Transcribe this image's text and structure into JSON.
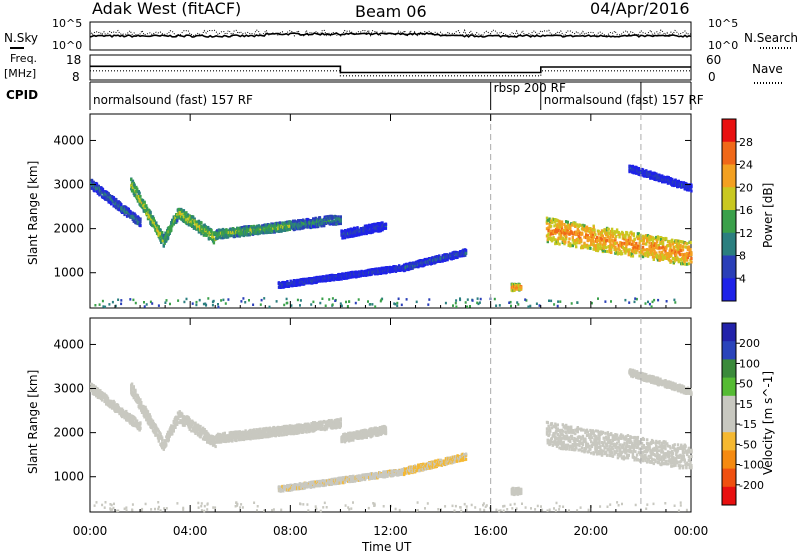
{
  "header": {
    "station": "Adak West (fitACF)",
    "beam": "Beam 06",
    "date": "04/Apr/2016"
  },
  "top_panels": {
    "nsky_label": "N.Sky",
    "nsearch_label": "N.Search",
    "nsky_ticks": [
      "10^5",
      "10^0"
    ],
    "nsearch_ticks": [
      "10^5",
      "10^0"
    ],
    "freq_label_1": "Freq.",
    "freq_label_2": "[MHz]",
    "freq_ticks": [
      "18",
      "8"
    ],
    "nave_label": "Nave",
    "nave_ticks": [
      "60",
      "0"
    ],
    "cpid_label": "CPID",
    "cpid_segments": [
      {
        "label": "normalsound (fast) 157 RF",
        "start_h": 0,
        "end_h": 16
      },
      {
        "label": "rbsp 200 RF",
        "start_h": 16,
        "end_h": 18
      },
      {
        "label": "normalsound (fast) 157 RF",
        "start_h": 18,
        "end_h": 22
      }
    ],
    "freq_series": [
      {
        "t": 0,
        "f": 13.5
      },
      {
        "t": 10,
        "f": 13.5
      },
      {
        "t": 10,
        "f": 11
      },
      {
        "t": 18,
        "f": 11
      },
      {
        "t": 18,
        "f": 13.2
      },
      {
        "t": 24,
        "f": 13.2
      }
    ],
    "nave_series": [
      {
        "t": 0,
        "n": 22
      },
      {
        "t": 10,
        "n": 22
      },
      {
        "t": 10,
        "n": 10
      },
      {
        "t": 18,
        "n": 10
      },
      {
        "t": 18,
        "n": 22
      },
      {
        "t": 24,
        "n": 22
      }
    ]
  },
  "chart_data": [
    {
      "type": "heatmap",
      "ylabel": "Slant Range [km]",
      "yticks": [
        "4000",
        "3000",
        "2000",
        "1000"
      ],
      "ylim": [
        200,
        4600
      ],
      "xlim": [
        0,
        24
      ],
      "colorbar": {
        "label": "Power [dB]",
        "ticks": [
          "28",
          "24",
          "20",
          "16",
          "12",
          "8",
          "4"
        ],
        "range": [
          0,
          32
        ],
        "colors": [
          "#1e22e8",
          "#2a3fb8",
          "#2b7f7f",
          "#3aa04a",
          "#c9c820",
          "#f3a020",
          "#f06818",
          "#e81010"
        ]
      },
      "events": [
        {
          "t0": 0.0,
          "t1": 2.0,
          "r0": 3050,
          "r1": 2150,
          "w": 200,
          "p": 10
        },
        {
          "t0": 1.6,
          "t1": 2.9,
          "r0": 3050,
          "r1": 1750,
          "w": 260,
          "p": 18
        },
        {
          "t0": 2.9,
          "t1": 3.5,
          "r0": 1750,
          "r1": 2400,
          "w": 240,
          "p": 16
        },
        {
          "t0": 3.5,
          "t1": 5.0,
          "r0": 2400,
          "r1": 1800,
          "w": 260,
          "p": 18
        },
        {
          "t0": 5.0,
          "t1": 8.0,
          "r0": 1900,
          "r1": 2100,
          "w": 200,
          "p": 16
        },
        {
          "t0": 8.0,
          "t1": 10.0,
          "r0": 2100,
          "r1": 2250,
          "w": 200,
          "p": 12
        },
        {
          "t0": 10.0,
          "t1": 11.8,
          "r0": 1900,
          "r1": 2100,
          "w": 180,
          "p": 6
        },
        {
          "t0": 7.5,
          "t1": 12.5,
          "r0": 750,
          "r1": 1150,
          "w": 120,
          "p": 6
        },
        {
          "t0": 12.5,
          "t1": 15.0,
          "r0": 1150,
          "r1": 1500,
          "w": 140,
          "p": 8
        },
        {
          "t0": 16.8,
          "t1": 17.2,
          "r0": 700,
          "r1": 700,
          "w": 150,
          "p": 24
        },
        {
          "t0": 18.2,
          "t1": 24.0,
          "r0": 2000,
          "r1": 1450,
          "w": 550,
          "p": 24
        },
        {
          "t0": 21.5,
          "t1": 24.0,
          "r0": 3400,
          "r1": 2950,
          "w": 150,
          "p": 6
        }
      ]
    },
    {
      "type": "heatmap",
      "ylabel": "Slant Range [km]",
      "yticks": [
        "4000",
        "3000",
        "2000",
        "1000"
      ],
      "ylim": [
        200,
        4600
      ],
      "xlim": [
        0,
        24
      ],
      "xlabel": "Time UT",
      "xticks": [
        "00:00",
        "04:00",
        "08:00",
        "12:00",
        "16:00",
        "20:00",
        "00:00"
      ],
      "colorbar": {
        "label": "Velocity [m s^-1]",
        "ticks": [
          "200",
          "100",
          "50",
          "15",
          "-15",
          "-50",
          "-100",
          "-200"
        ],
        "range": [
          -250,
          250
        ],
        "colors": [
          "#e81010",
          "#f05010",
          "#f58a10",
          "#f5b830",
          "#c8c8c0",
          "#c8c8c0",
          "#55bb33",
          "#3a8a3a",
          "#2a44bb",
          "#2222aa"
        ]
      },
      "events": [
        {
          "t0": 0.0,
          "t1": 2.0,
          "r0": 3050,
          "r1": 2150,
          "w": 200,
          "v": 0
        },
        {
          "t0": 1.6,
          "t1": 2.9,
          "r0": 3050,
          "r1": 1750,
          "w": 260,
          "v": 0
        },
        {
          "t0": 2.9,
          "t1": 3.5,
          "r0": 1750,
          "r1": 2400,
          "w": 240,
          "v": 0
        },
        {
          "t0": 3.5,
          "t1": 5.0,
          "r0": 2400,
          "r1": 1800,
          "w": 260,
          "v": 0
        },
        {
          "t0": 5.0,
          "t1": 8.0,
          "r0": 1900,
          "r1": 2100,
          "w": 200,
          "v": 0
        },
        {
          "t0": 8.0,
          "t1": 10.0,
          "r0": 2100,
          "r1": 2250,
          "w": 200,
          "v": 0
        },
        {
          "t0": 10.0,
          "t1": 11.8,
          "r0": 1900,
          "r1": 2100,
          "w": 180,
          "v": 0
        },
        {
          "t0": 7.5,
          "t1": 12.5,
          "r0": 750,
          "r1": 1150,
          "w": 120,
          "v": -40
        },
        {
          "t0": 12.5,
          "t1": 15.0,
          "r0": 1150,
          "r1": 1500,
          "w": 140,
          "v": -60
        },
        {
          "t0": 16.8,
          "t1": 17.2,
          "r0": 700,
          "r1": 700,
          "w": 150,
          "v": 0
        },
        {
          "t0": 18.2,
          "t1": 24.0,
          "r0": 2000,
          "r1": 1450,
          "w": 550,
          "v": 0
        },
        {
          "t0": 21.5,
          "t1": 24.0,
          "r0": 3400,
          "r1": 2950,
          "w": 150,
          "v": 0
        }
      ]
    }
  ]
}
